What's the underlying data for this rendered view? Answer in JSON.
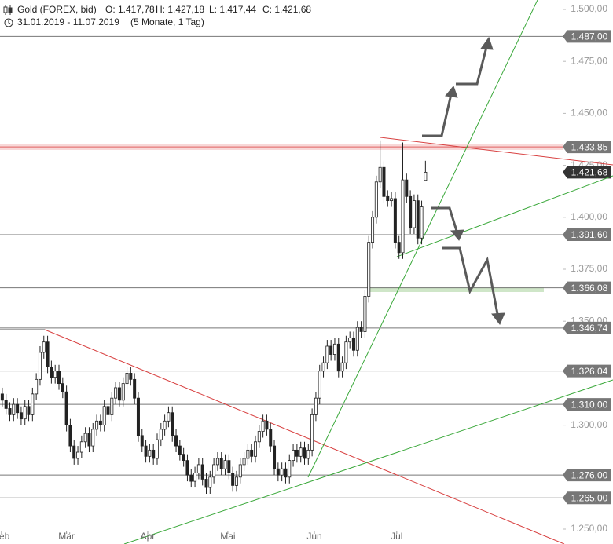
{
  "chart_data": {
    "type": "candlestick",
    "title": "Gold (FOREX, bid)",
    "quote": [
      "O: 1.417,78",
      "H: 1.427,18",
      "L: 1.417,44",
      "C: 1.421,68"
    ],
    "period": "31.01.2019 - 11.07.2019",
    "period_note": "(5 Monate, 1 Tag)",
    "up_color": "#ffffff",
    "down_color": "#222222",
    "ohlc": [
      [
        1315,
        1318,
        1309,
        1312
      ],
      [
        1312,
        1315,
        1305,
        1308
      ],
      [
        1308,
        1311,
        1302,
        1305
      ],
      [
        1305,
        1313,
        1302,
        1310
      ],
      [
        1310,
        1313,
        1303,
        1306
      ],
      [
        1306,
        1309,
        1300,
        1303
      ],
      [
        1303,
        1312,
        1300,
        1309
      ],
      [
        1309,
        1312,
        1302,
        1305
      ],
      [
        1305,
        1318,
        1302,
        1315
      ],
      [
        1315,
        1325,
        1312,
        1322
      ],
      [
        1322,
        1338,
        1319,
        1335
      ],
      [
        1335,
        1343,
        1332,
        1340
      ],
      [
        1340,
        1343,
        1325,
        1328
      ],
      [
        1328,
        1331,
        1320,
        1323
      ],
      [
        1323,
        1329,
        1320,
        1326
      ],
      [
        1326,
        1329,
        1317,
        1320
      ],
      [
        1320,
        1323,
        1313,
        1316
      ],
      [
        1316,
        1319,
        1297,
        1300
      ],
      [
        1300,
        1303,
        1287,
        1290
      ],
      [
        1290,
        1293,
        1281,
        1284
      ],
      [
        1284,
        1290,
        1281,
        1287
      ],
      [
        1287,
        1295,
        1284,
        1292
      ],
      [
        1292,
        1299,
        1289,
        1296
      ],
      [
        1296,
        1299,
        1287,
        1290
      ],
      [
        1290,
        1301,
        1287,
        1298
      ],
      [
        1298,
        1305,
        1295,
        1302
      ],
      [
        1302,
        1305,
        1297,
        1300
      ],
      [
        1300,
        1312,
        1297,
        1309
      ],
      [
        1309,
        1312,
        1302,
        1305
      ],
      [
        1305,
        1316,
        1302,
        1313
      ],
      [
        1313,
        1321,
        1310,
        1318
      ],
      [
        1318,
        1321,
        1309,
        1312
      ],
      [
        1312,
        1323,
        1309,
        1320
      ],
      [
        1320,
        1328,
        1317,
        1325
      ],
      [
        1325,
        1328,
        1319,
        1322
      ],
      [
        1322,
        1325,
        1310,
        1313
      ],
      [
        1313,
        1316,
        1292,
        1295
      ],
      [
        1295,
        1298,
        1287,
        1290
      ],
      [
        1290,
        1293,
        1282,
        1285
      ],
      [
        1285,
        1291,
        1282,
        1288
      ],
      [
        1288,
        1291,
        1281,
        1284
      ],
      [
        1284,
        1296,
        1281,
        1293
      ],
      [
        1293,
        1301,
        1290,
        1298
      ],
      [
        1298,
        1305,
        1295,
        1302
      ],
      [
        1302,
        1309,
        1299,
        1306
      ],
      [
        1306,
        1309,
        1292,
        1295
      ],
      [
        1295,
        1298,
        1287,
        1290
      ],
      [
        1290,
        1293,
        1283,
        1286
      ],
      [
        1286,
        1289,
        1280,
        1283
      ],
      [
        1283,
        1286,
        1273,
        1276
      ],
      [
        1276,
        1279,
        1270,
        1273
      ],
      [
        1273,
        1280,
        1270,
        1277
      ],
      [
        1277,
        1284,
        1274,
        1281
      ],
      [
        1281,
        1284,
        1271,
        1274
      ],
      [
        1274,
        1277,
        1267,
        1270
      ],
      [
        1270,
        1278,
        1267,
        1275
      ],
      [
        1275,
        1284,
        1272,
        1281
      ],
      [
        1281,
        1287,
        1278,
        1284
      ],
      [
        1284,
        1287,
        1276,
        1279
      ],
      [
        1279,
        1286,
        1276,
        1283
      ],
      [
        1283,
        1286,
        1274,
        1277
      ],
      [
        1277,
        1280,
        1268,
        1271
      ],
      [
        1271,
        1278,
        1268,
        1275
      ],
      [
        1275,
        1284,
        1272,
        1281
      ],
      [
        1281,
        1287,
        1278,
        1284
      ],
      [
        1284,
        1291,
        1281,
        1288
      ],
      [
        1288,
        1291,
        1282,
        1285
      ],
      [
        1285,
        1295,
        1282,
        1292
      ],
      [
        1292,
        1300,
        1289,
        1297
      ],
      [
        1297,
        1305,
        1294,
        1302
      ],
      [
        1302,
        1305,
        1295,
        1298
      ],
      [
        1298,
        1301,
        1287,
        1290
      ],
      [
        1290,
        1293,
        1276,
        1279
      ],
      [
        1279,
        1282,
        1273,
        1276
      ],
      [
        1276,
        1282,
        1273,
        1279
      ],
      [
        1279,
        1282,
        1272,
        1275
      ],
      [
        1275,
        1286,
        1272,
        1283
      ],
      [
        1283,
        1291,
        1280,
        1288
      ],
      [
        1288,
        1291,
        1282,
        1285
      ],
      [
        1285,
        1292,
        1282,
        1289
      ],
      [
        1289,
        1292,
        1281,
        1284
      ],
      [
        1284,
        1291,
        1281,
        1288
      ],
      [
        1288,
        1308,
        1285,
        1305
      ],
      [
        1305,
        1316,
        1302,
        1313
      ],
      [
        1313,
        1329,
        1310,
        1326
      ],
      [
        1326,
        1333,
        1323,
        1330
      ],
      [
        1330,
        1341,
        1327,
        1338
      ],
      [
        1338,
        1341,
        1331,
        1334
      ],
      [
        1334,
        1342,
        1331,
        1339
      ],
      [
        1339,
        1342,
        1323,
        1326
      ],
      [
        1326,
        1333,
        1323,
        1330
      ],
      [
        1330,
        1343,
        1327,
        1340
      ],
      [
        1340,
        1345,
        1337,
        1342
      ],
      [
        1342,
        1345,
        1333,
        1336
      ],
      [
        1336,
        1350,
        1333,
        1347
      ],
      [
        1347,
        1350,
        1342,
        1345
      ],
      [
        1345,
        1365,
        1342,
        1362
      ],
      [
        1362,
        1391,
        1359,
        1388
      ],
      [
        1388,
        1403,
        1385,
        1400
      ],
      [
        1400,
        1420,
        1397,
        1417
      ],
      [
        1417,
        1437,
        1414,
        1424
      ],
      [
        1424,
        1427,
        1407,
        1410
      ],
      [
        1410,
        1413,
        1405,
        1408
      ],
      [
        1408,
        1412,
        1405,
        1409
      ],
      [
        1409,
        1412,
        1385,
        1388
      ],
      [
        1388,
        1391,
        1380,
        1383
      ],
      [
        1383,
        1436,
        1380,
        1418
      ],
      [
        1418,
        1421,
        1407,
        1410
      ],
      [
        1410,
        1413,
        1392,
        1395
      ],
      [
        1395,
        1411,
        1392,
        1408
      ],
      [
        1408,
        1411,
        1387,
        1390
      ],
      [
        1390,
        1408,
        1387,
        1405
      ],
      [
        1417.78,
        1427.18,
        1417.44,
        1421.68
      ]
    ],
    "xlim": [
      -0.6,
      145
    ],
    "xticks": [
      {
        "value": -0.2,
        "label": "Feb"
      },
      {
        "value": 17,
        "label": "Mär"
      },
      {
        "value": 38.5,
        "label": "Apr"
      },
      {
        "value": 59.7,
        "label": "Mai"
      },
      {
        "value": 82.6,
        "label": "Jun"
      },
      {
        "value": 104.4,
        "label": "Jul"
      }
    ],
    "ylim": [
      1250,
      1500
    ],
    "yticks": [
      {
        "value": 1250,
        "label": "1.250,00"
      },
      {
        "value": 1300,
        "label": "1.300,00"
      },
      {
        "value": 1350,
        "label": "1.350,00"
      },
      {
        "value": 1375,
        "label": "1.375,00"
      },
      {
        "value": 1400,
        "label": "1.400,00"
      },
      {
        "value": 1425,
        "label": "1.425,00"
      },
      {
        "value": 1450,
        "label": "1.450,00"
      },
      {
        "value": 1475,
        "label": "1.475,00"
      },
      {
        "value": 1500,
        "label": "1.500,00"
      }
    ],
    "levels": [
      {
        "value": 1487,
        "label": "1.487,00",
        "color": "#777777"
      },
      {
        "value": 1433.85,
        "label": "1.433,85",
        "color": "#e06060"
      },
      {
        "value": 1391.6,
        "label": "1.391,60",
        "color": "#777777"
      },
      {
        "value": 1366.08,
        "label": "1.366,08",
        "color": "#777777"
      },
      {
        "value": 1346.74,
        "label": "1.346,74",
        "color": "#777777"
      },
      {
        "value": 1326.04,
        "label": "1.326,04",
        "color": "#777777"
      },
      {
        "value": 1310,
        "label": "1.310,00",
        "color": "#777777"
      },
      {
        "value": 1276,
        "label": "1.276,00",
        "color": "#777777"
      },
      {
        "value": 1265,
        "label": "1.265,00",
        "color": "#777777"
      }
    ],
    "last_price": {
      "value": 1421.68,
      "label": "1.421,68",
      "color": "#333333"
    }
  }
}
